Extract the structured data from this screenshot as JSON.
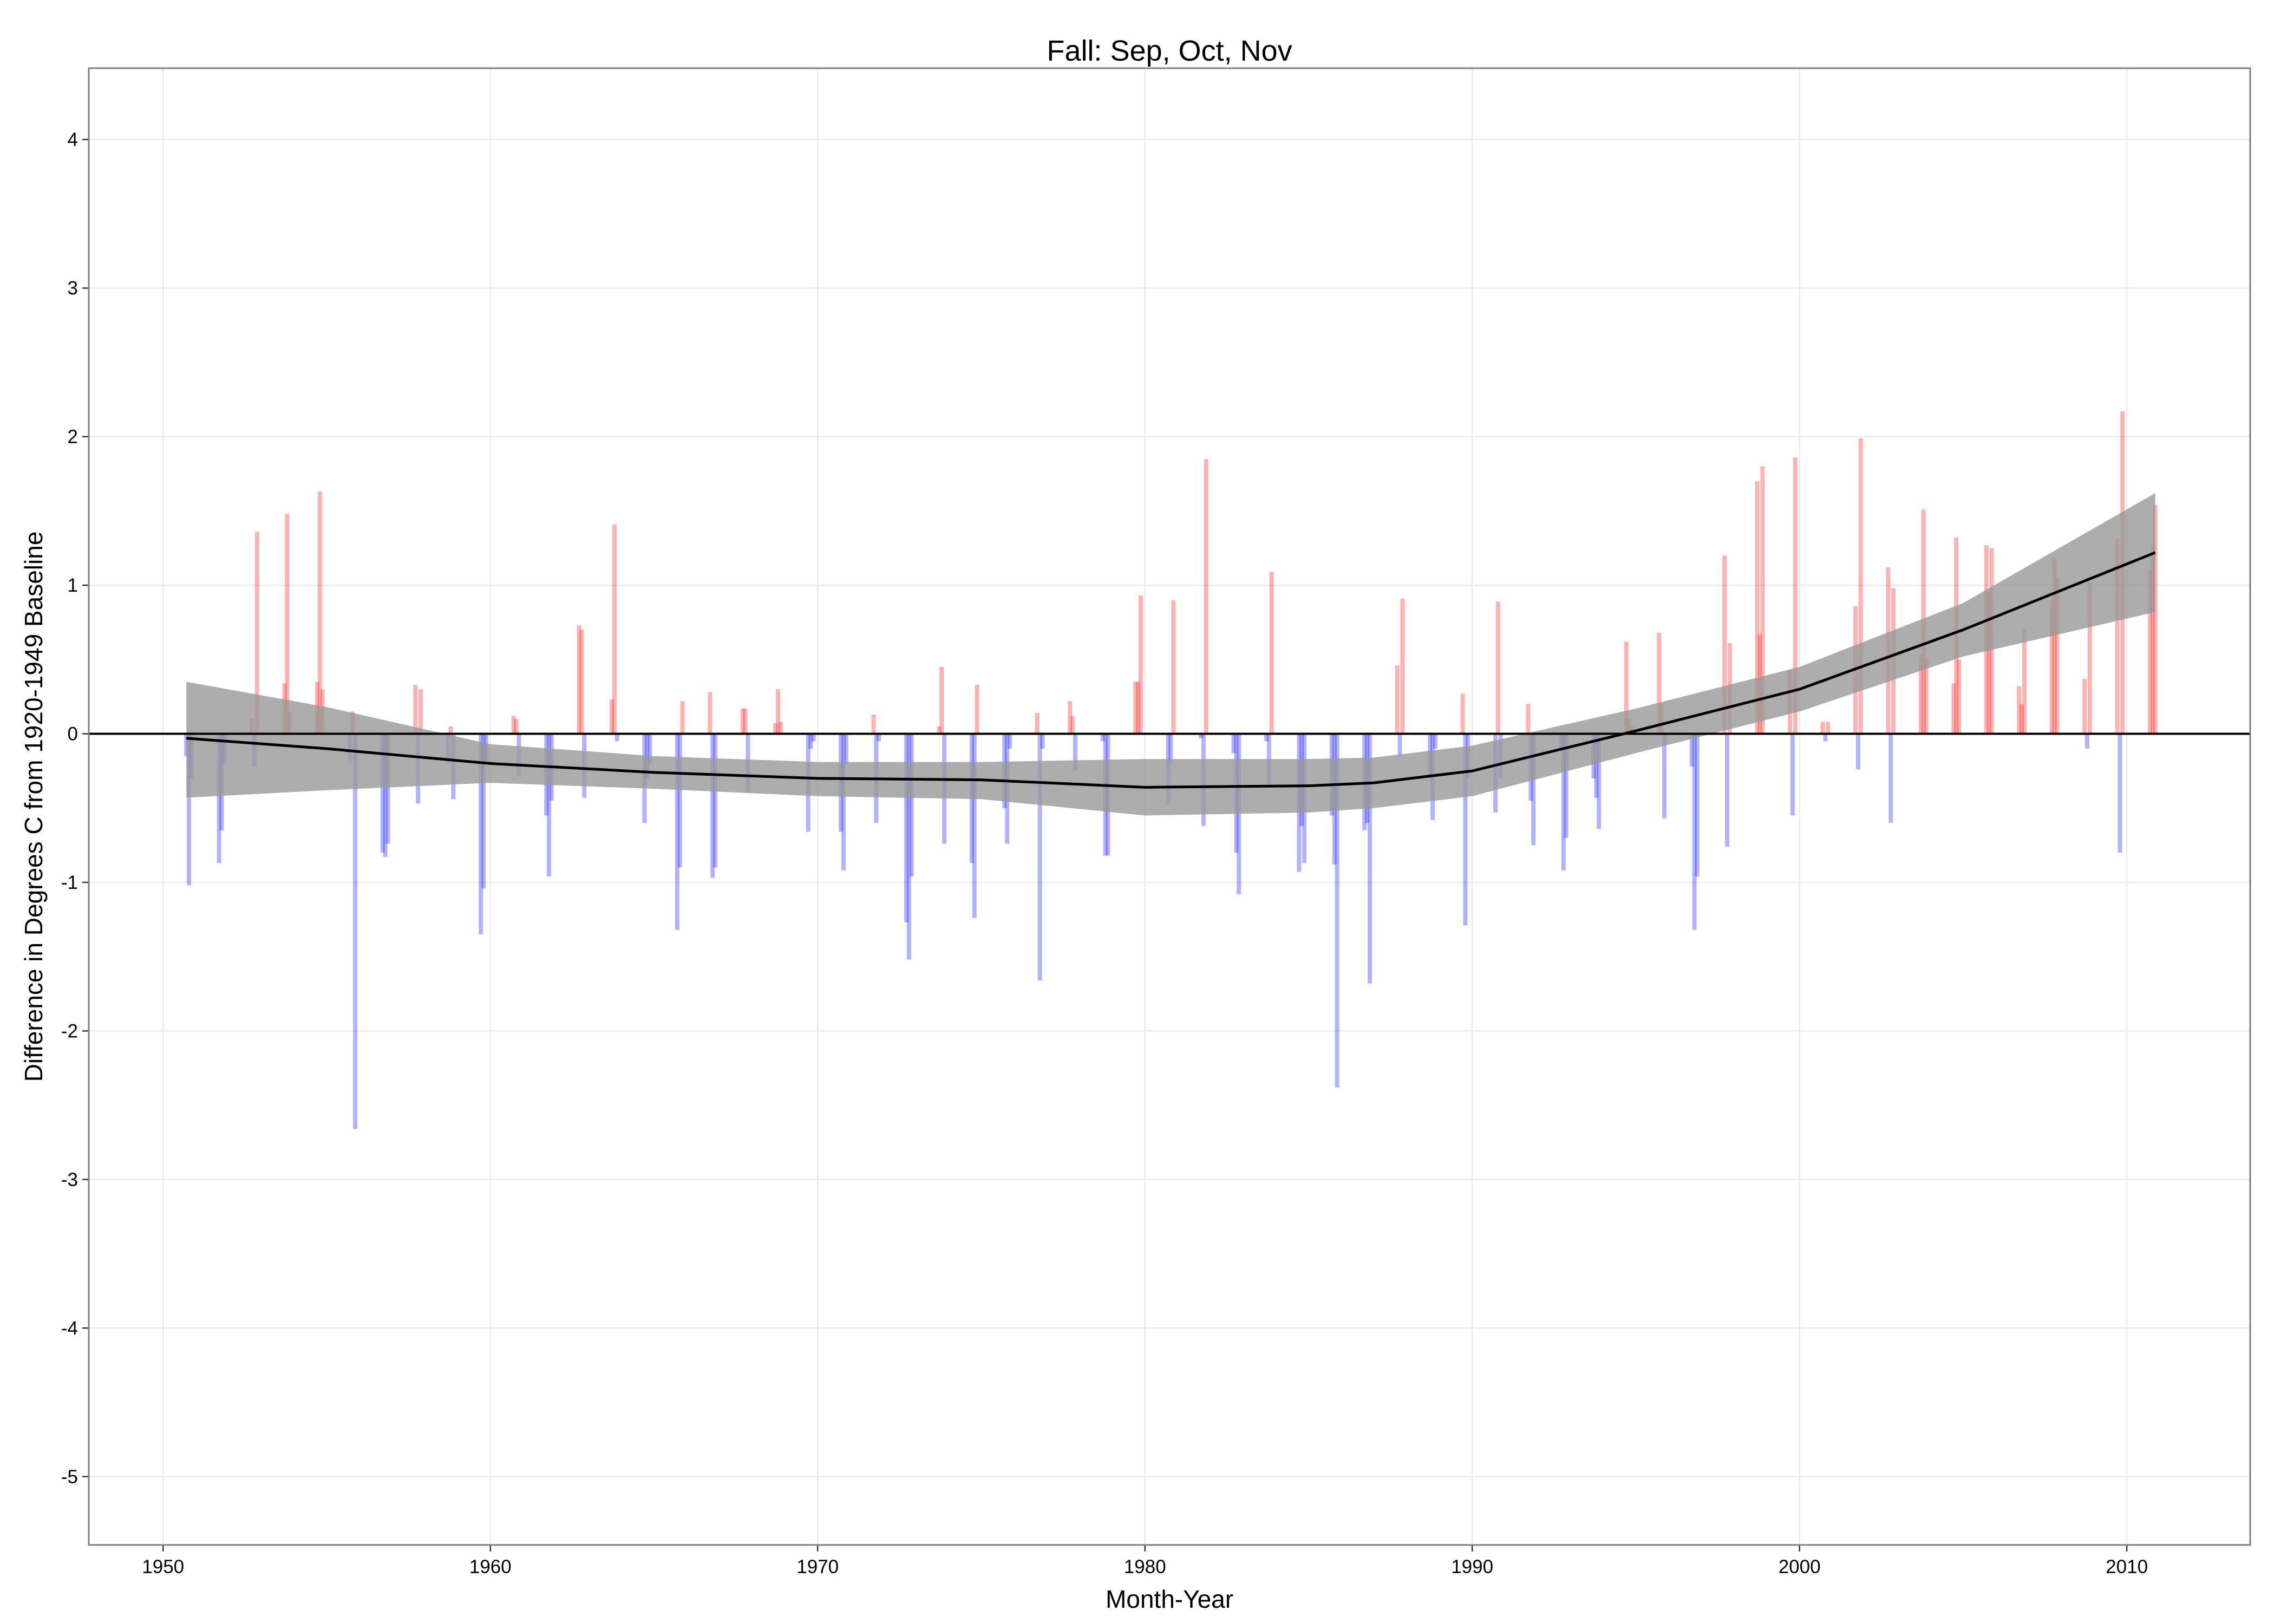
{
  "chart_data": {
    "type": "bar",
    "title": "Fall: Sep, Oct, Nov",
    "x_label": "Month-Year",
    "y_label": "Difference in Degrees C from 1920-1949 Baseline",
    "xlim": [
      1947.73,
      2013.77
    ],
    "ylim": [
      -5.46,
      4.48
    ],
    "xticks": [
      1950,
      1960,
      1970,
      1980,
      1990,
      2000,
      2010
    ],
    "yticks": [
      -5,
      -4,
      -3,
      -2,
      -1,
      0,
      1,
      2,
      3,
      4
    ],
    "grid": true,
    "positive_color": "#ff0000",
    "negative_color": "#0000ff",
    "hline": 0,
    "x": [
      1950.71,
      1950.79,
      1950.87,
      1951.71,
      1951.79,
      1951.87,
      1952.71,
      1952.79,
      1952.87,
      1953.71,
      1953.79,
      1953.87,
      1954.71,
      1954.79,
      1954.87,
      1955.71,
      1955.79,
      1955.87,
      1956.71,
      1956.79,
      1956.87,
      1957.71,
      1957.79,
      1957.87,
      1958.71,
      1958.79,
      1958.87,
      1959.71,
      1959.79,
      1959.87,
      1960.71,
      1960.79,
      1960.87,
      1961.71,
      1961.79,
      1961.87,
      1962.71,
      1962.79,
      1962.87,
      1963.71,
      1963.79,
      1963.87,
      1964.71,
      1964.79,
      1964.87,
      1965.71,
      1965.79,
      1965.87,
      1966.71,
      1966.79,
      1966.87,
      1967.71,
      1967.79,
      1967.87,
      1968.71,
      1968.79,
      1968.87,
      1969.71,
      1969.79,
      1969.87,
      1970.71,
      1970.79,
      1970.87,
      1971.71,
      1971.79,
      1971.87,
      1972.71,
      1972.79,
      1972.87,
      1973.71,
      1973.79,
      1973.87,
      1974.71,
      1974.79,
      1974.87,
      1975.71,
      1975.79,
      1975.87,
      1976.71,
      1976.79,
      1976.87,
      1977.71,
      1977.79,
      1977.87,
      1978.71,
      1978.79,
      1978.87,
      1979.71,
      1979.79,
      1979.87,
      1980.71,
      1980.79,
      1980.87,
      1981.71,
      1981.79,
      1981.87,
      1982.71,
      1982.79,
      1982.87,
      1983.71,
      1983.79,
      1983.87,
      1984.71,
      1984.79,
      1984.87,
      1985.71,
      1985.79,
      1985.87,
      1986.71,
      1986.79,
      1986.87,
      1987.71,
      1987.79,
      1987.87,
      1988.71,
      1988.79,
      1988.87,
      1989.71,
      1989.79,
      1989.87,
      1990.71,
      1990.79,
      1990.87,
      1991.71,
      1991.79,
      1991.87,
      1992.71,
      1992.79,
      1992.87,
      1993.71,
      1993.79,
      1993.87,
      1994.71,
      1994.79,
      1994.87,
      1995.71,
      1995.79,
      1995.87,
      1996.71,
      1996.79,
      1996.87,
      1997.71,
      1997.79,
      1997.87,
      1998.71,
      1998.79,
      1998.87,
      1999.71,
      1999.79,
      1999.87,
      2000.71,
      2000.79,
      2000.87,
      2001.71,
      2001.79,
      2001.87,
      2002.71,
      2002.79,
      2002.87,
      2003.71,
      2003.79,
      2003.87,
      2004.71,
      2004.79,
      2004.87,
      2005.71,
      2005.79,
      2005.87,
      2006.71,
      2006.79,
      2006.87,
      2007.71,
      2007.79,
      2007.87,
      2008.71,
      2008.79,
      2008.87,
      2009.71,
      2009.79,
      2009.87,
      2010.71,
      2010.79,
      2010.87
    ],
    "values": [
      -0.15,
      -1.02,
      -0.3,
      -0.87,
      -0.65,
      -0.2,
      0.1,
      -0.22,
      1.36,
      0.34,
      1.48,
      0.15,
      0.35,
      1.63,
      0.3,
      -0.2,
      0.15,
      -2.66,
      -0.8,
      -0.83,
      -0.74,
      0.33,
      -0.47,
      0.3,
      -0.2,
      0.05,
      -0.44,
      -1.35,
      -1.04,
      -0.2,
      0.12,
      0.1,
      -0.28,
      -0.55,
      -0.96,
      -0.45,
      0.73,
      0.7,
      -0.43,
      0.23,
      1.41,
      -0.05,
      -0.6,
      -0.3,
      -0.2,
      -1.32,
      -0.9,
      0.22,
      0.28,
      -0.97,
      -0.9,
      0.17,
      0.17,
      -0.39,
      0.07,
      0.3,
      0.08,
      -0.66,
      -0.1,
      -0.05,
      -0.66,
      -0.92,
      -0.2,
      0.13,
      -0.6,
      -0.05,
      -1.27,
      -1.52,
      -0.96,
      0.05,
      0.45,
      -0.74,
      -0.87,
      -1.24,
      0.33,
      -0.5,
      -0.74,
      -0.1,
      0.14,
      -1.66,
      -0.1,
      0.22,
      0.12,
      -0.25,
      -0.05,
      -0.82,
      -0.82,
      0.35,
      0.35,
      0.93,
      -0.48,
      -0.2,
      0.9,
      -0.03,
      -0.62,
      1.85,
      -0.13,
      -0.8,
      -1.08,
      -0.05,
      -0.34,
      1.09,
      -0.93,
      -0.62,
      -0.87,
      -0.55,
      -0.88,
      -2.38,
      -0.65,
      -0.6,
      -1.68,
      0.46,
      -0.15,
      0.91,
      -0.3,
      -0.58,
      -0.1,
      0.27,
      -1.29,
      -0.3,
      -0.53,
      0.89,
      -0.3,
      0.2,
      -0.45,
      -0.75,
      -0.1,
      -0.92,
      -0.7,
      -0.3,
      -0.43,
      -0.64,
      0.62,
      0.1,
      0.05,
      0.68,
      0.2,
      -0.57,
      -0.22,
      -1.32,
      -0.96,
      1.2,
      -0.76,
      0.61,
      1.7,
      0.67,
      1.8,
      0.43,
      -0.55,
      1.86,
      0.08,
      -0.05,
      0.08,
      0.86,
      -0.24,
      1.99,
      1.12,
      -0.6,
      0.98,
      0.53,
      1.51,
      0.5,
      0.34,
      1.32,
      0.5,
      1.27,
      0.95,
      1.25,
      0.32,
      0.2,
      0.7,
      0.9,
      1.19,
      1.05,
      0.37,
      -0.1,
      1.02,
      1.31,
      -0.8,
      2.17,
      1.1,
      1.27,
      1.54
    ],
    "smooth": {
      "color": "#000000",
      "band_color": "#999999",
      "x": [
        1950.71,
        1955,
        1960,
        1965,
        1970,
        1975,
        1980,
        1985,
        1987,
        1990,
        1995,
        2000,
        2005,
        2010.87
      ],
      "values": [
        -0.03,
        -0.1,
        -0.2,
        -0.26,
        -0.3,
        -0.31,
        -0.36,
        -0.35,
        -0.33,
        -0.25,
        0.02,
        0.3,
        0.7,
        1.22
      ],
      "lower": [
        -0.43,
        -0.38,
        -0.33,
        -0.37,
        -0.42,
        -0.44,
        -0.55,
        -0.53,
        -0.5,
        -0.42,
        -0.13,
        0.15,
        0.52,
        0.82
      ],
      "upper": [
        0.35,
        0.18,
        -0.07,
        -0.15,
        -0.19,
        -0.19,
        -0.17,
        -0.17,
        -0.16,
        -0.08,
        0.17,
        0.45,
        0.88,
        1.62
      ]
    }
  }
}
